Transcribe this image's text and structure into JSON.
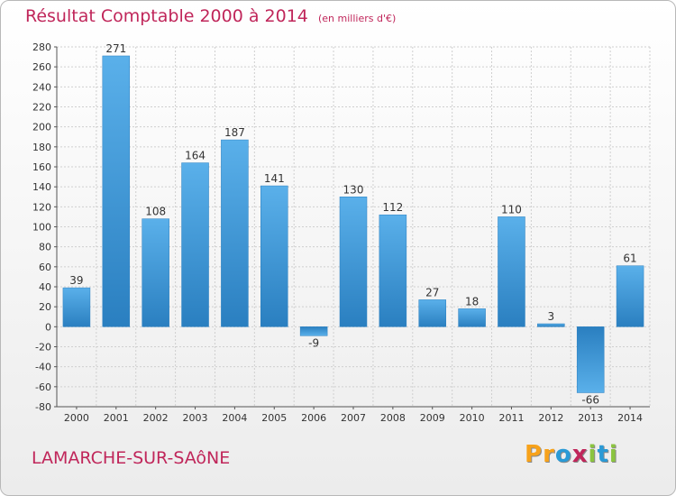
{
  "title": "Résultat Comptable 2000 à 2014",
  "subtitle": "(en milliers d'€)",
  "city": "LAMARCHE-SUR-SAôNE",
  "logo": {
    "text": "Proxiti",
    "letters": [
      "P",
      "r",
      "o",
      "x",
      "i",
      "t",
      "i"
    ],
    "colors": [
      "#f7a21b",
      "#f7a21b",
      "#2a9ad6",
      "#c0265a",
      "#8bc43f",
      "#2a9ad6",
      "#8bc43f"
    ]
  },
  "colors": {
    "title": "#c0265a",
    "bar_light": "#5ab0ea",
    "bar_dark": "#2a7fc0",
    "grid": "#cfcfcf"
  },
  "chart_data": {
    "type": "bar",
    "categories": [
      "2000",
      "2001",
      "2002",
      "2003",
      "2004",
      "2005",
      "2006",
      "2007",
      "2008",
      "2009",
      "2010",
      "2011",
      "2012",
      "2013",
      "2014"
    ],
    "values": [
      39,
      271,
      108,
      164,
      187,
      141,
      -9,
      130,
      112,
      27,
      18,
      110,
      3,
      -66,
      61
    ],
    "ylim": [
      -80,
      280
    ],
    "yticks": [
      280,
      260,
      240,
      220,
      200,
      180,
      160,
      140,
      120,
      100,
      80,
      60,
      40,
      20,
      0,
      -20,
      -40,
      -60,
      -80
    ],
    "grid": true,
    "title": "Résultat Comptable 2000 à 2014",
    "xlabel": "",
    "ylabel": ""
  }
}
